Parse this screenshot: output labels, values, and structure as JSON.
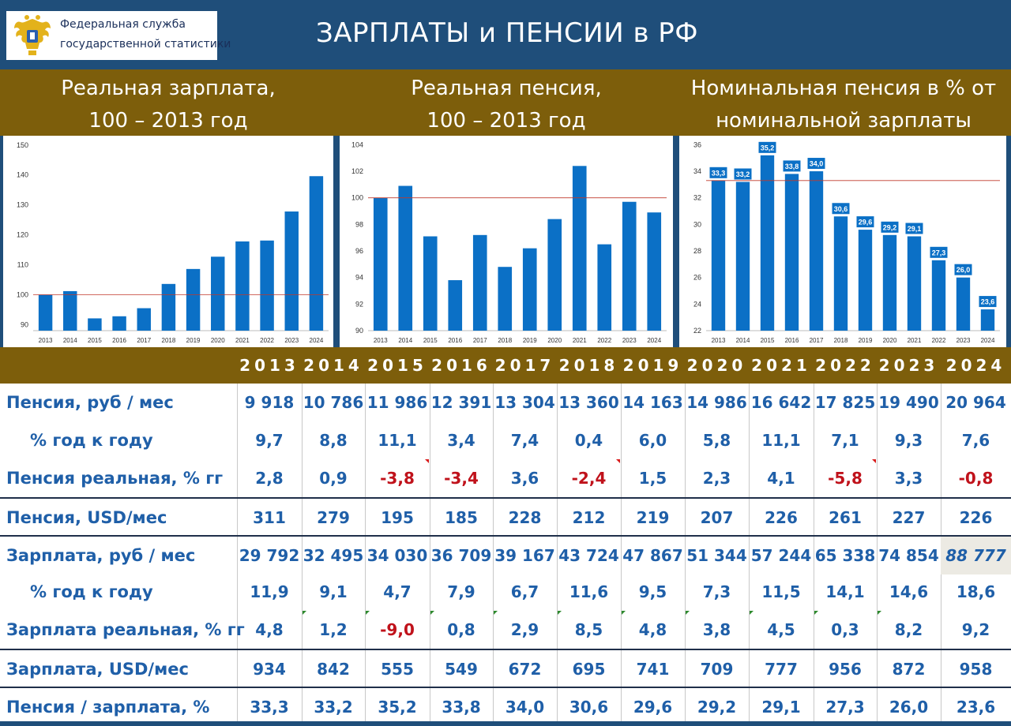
{
  "header": {
    "agency_line1": "Федеральная служба",
    "agency_line2": "государственной статистики",
    "title": "ЗАРПЛАТЫ и ПЕНСИИ в РФ"
  },
  "colors": {
    "header_bg": "#1f4e7a",
    "band_bg": "#7d5e0b",
    "bar": "#0b70c6",
    "reference_line": "#c0392b",
    "text_blue": "#1f5fa8",
    "negative": "#c0121b"
  },
  "chart_data": [
    {
      "type": "bar",
      "title_line1": "Реальная зарплата,",
      "title_line2": "100 – 2013 год",
      "categories": [
        "2013",
        "2014",
        "2015",
        "2016",
        "2017",
        "2018",
        "2019",
        "2020",
        "2021",
        "2022",
        "2023",
        "2024"
      ],
      "values": [
        100,
        101.2,
        92.1,
        92.8,
        95.5,
        103.6,
        108.6,
        112.7,
        117.8,
        118.1,
        127.8,
        139.6
      ],
      "ylim": [
        88,
        151
      ],
      "yticks": [
        90,
        100,
        110,
        120,
        130,
        140,
        150
      ],
      "reference_line": 100,
      "grid": false
    },
    {
      "type": "bar",
      "title_line1": "Реальная пенсия,",
      "title_line2": "100 – 2013 год",
      "categories": [
        "2013",
        "2014",
        "2015",
        "2016",
        "2017",
        "2018",
        "2019",
        "2020",
        "2021",
        "2022",
        "2023",
        "2024"
      ],
      "values": [
        100,
        100.9,
        97.1,
        93.8,
        97.2,
        94.8,
        96.2,
        98.4,
        102.4,
        96.5,
        99.7,
        98.9
      ],
      "ylim": [
        90,
        104.2
      ],
      "yticks": [
        90,
        92,
        94,
        96,
        98,
        100,
        102,
        104
      ],
      "reference_line": 100,
      "grid": false
    },
    {
      "type": "bar",
      "title_line1": "Номинальная пенсия в % от",
      "title_line2": "номинальной зарплаты",
      "categories": [
        "2013",
        "2014",
        "2015",
        "2016",
        "2017",
        "2018",
        "2019",
        "2020",
        "2021",
        "2022",
        "2023",
        "2024"
      ],
      "values": [
        33.3,
        33.2,
        35.2,
        33.8,
        34.0,
        30.6,
        29.6,
        29.2,
        29.1,
        27.3,
        26.0,
        23.6
      ],
      "data_labels": [
        "33,3",
        "33,2",
        "35,2",
        "33,8",
        "34,0",
        "30,6",
        "29,6",
        "29,2",
        "29,1",
        "27,3",
        "26,0",
        "23,6"
      ],
      "ylim": [
        22,
        36.2
      ],
      "yticks": [
        22,
        24,
        26,
        28,
        30,
        32,
        34,
        36
      ],
      "reference_line": 33.3,
      "grid": false
    }
  ],
  "table": {
    "years": [
      "2013",
      "2014",
      "2015",
      "2016",
      "2017",
      "2018",
      "2019",
      "2020",
      "2021",
      "2022",
      "2023",
      "2024"
    ],
    "rows": [
      {
        "label": "Пенсия, руб / мес",
        "indent": false,
        "values": [
          "9 918",
          "10 786",
          "11 986",
          "12 391",
          "13 304",
          "13 360",
          "14 163",
          "14 986",
          "16 642",
          "17 825",
          "19 490",
          "20 964"
        ]
      },
      {
        "label": "% год к году",
        "indent": true,
        "values": [
          "9,7",
          "8,8",
          "11,1",
          "3,4",
          "7,4",
          "0,4",
          "6,0",
          "5,8",
          "11,1",
          "7,1",
          "9,3",
          "7,6"
        ]
      },
      {
        "label": "Пенсия реальная, % гг",
        "indent": false,
        "values": [
          "2,8",
          "0,9",
          "-3,8",
          "-3,4",
          "3,6",
          "-2,4",
          "1,5",
          "2,3",
          "4,1",
          "-5,8",
          "3,3",
          "-0,8"
        ]
      },
      {
        "label": "Пенсия, USD/мес",
        "indent": false,
        "values": [
          "311",
          "279",
          "195",
          "185",
          "228",
          "212",
          "219",
          "207",
          "226",
          "261",
          "227",
          "226"
        ]
      },
      {
        "label": "Зарплата, руб / мес",
        "indent": false,
        "values": [
          "29 792",
          "32 495",
          "34 030",
          "36 709",
          "39 167",
          "43 724",
          "47 867",
          "51 344",
          "57 244",
          "65 338",
          "74 854",
          "88 777"
        ]
      },
      {
        "label": "% год к году",
        "indent": true,
        "values": [
          "11,9",
          "9,1",
          "4,7",
          "7,9",
          "6,7",
          "11,6",
          "9,5",
          "7,3",
          "11,5",
          "14,1",
          "14,6",
          "18,6"
        ]
      },
      {
        "label": "Зарплата реальная, % гг",
        "indent": false,
        "values": [
          "4,8",
          "1,2",
          "-9,0",
          "0,8",
          "2,9",
          "8,5",
          "4,8",
          "3,8",
          "4,5",
          "0,3",
          "8,2",
          "9,2"
        ]
      },
      {
        "label": "Зарплата, USD/мес",
        "indent": false,
        "values": [
          "934",
          "842",
          "555",
          "549",
          "672",
          "695",
          "741",
          "709",
          "777",
          "956",
          "872",
          "958"
        ]
      },
      {
        "label": "Пенсия / зарплата, %",
        "indent": false,
        "values": [
          "33,3",
          "33,2",
          "35,2",
          "33,8",
          "34,0",
          "30,6",
          "29,6",
          "29,2",
          "29,1",
          "27,3",
          "26,0",
          "23,6"
        ]
      }
    ]
  }
}
